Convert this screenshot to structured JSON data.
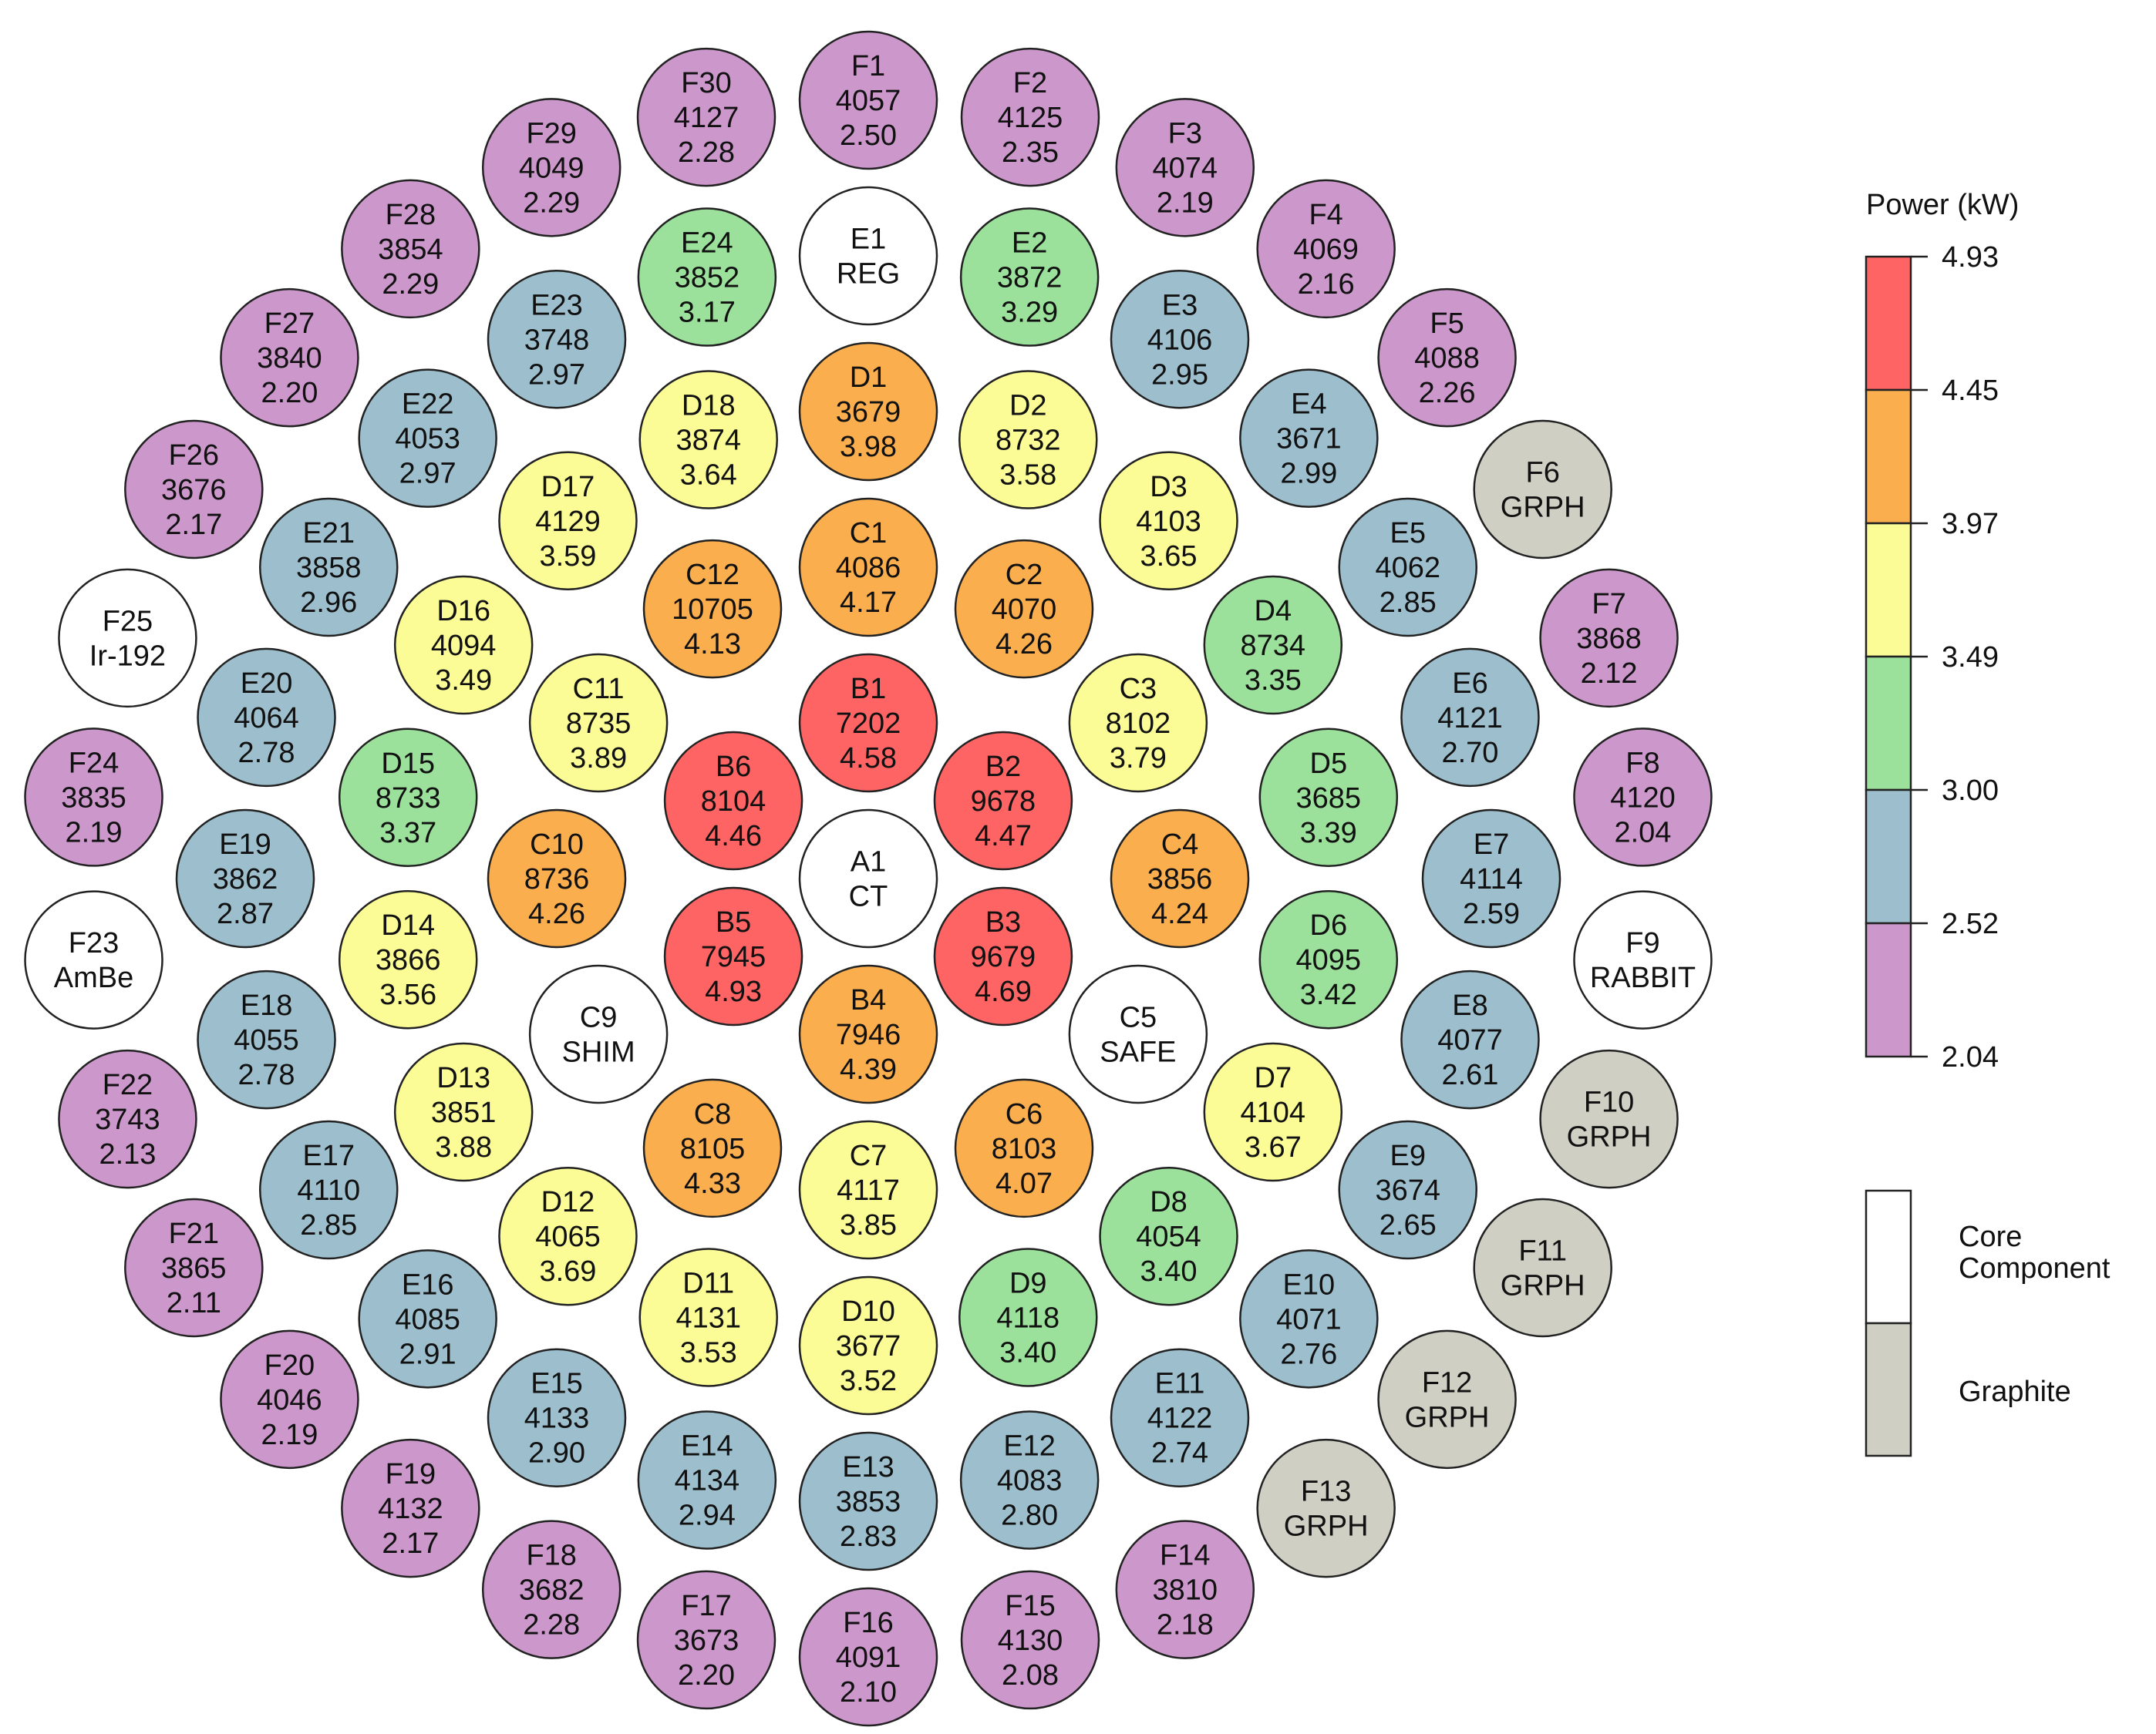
{
  "colors": {
    "red": "#ff6464",
    "orange": "#fbae4e",
    "yellow": "#fbfc96",
    "green": "#9be09b",
    "blue": "#9dbfcd",
    "purple": "#cc97cb",
    "core_component": "#ffffff",
    "graphite": "#cfcfc4",
    "stroke": "#222222"
  },
  "colorbar": {
    "title": "Power (kW)",
    "ticks": [
      "4.93",
      "4.45",
      "3.97",
      "3.49",
      "3.00",
      "2.52",
      "2.04"
    ],
    "bands": [
      "red",
      "orange",
      "yellow",
      "green",
      "blue",
      "purple"
    ]
  },
  "legend": {
    "items": [
      {
        "key": "core",
        "lines": [
          "Core",
          "Component"
        ],
        "color": "core_component"
      },
      {
        "key": "graphite",
        "lines": [
          "Graphite"
        ],
        "color": "graphite"
      }
    ]
  },
  "chart_data": {
    "type": "core map",
    "elements": [
      {
        "ring": "A",
        "pos": 1,
        "label": "A1",
        "line2": "CT",
        "line3": "",
        "kind": "core"
      },
      {
        "ring": "B",
        "pos": 1,
        "label": "B1",
        "line2": "7202",
        "line3": "4.58",
        "power": 4.58
      },
      {
        "ring": "B",
        "pos": 2,
        "label": "B2",
        "line2": "9678",
        "line3": "4.47",
        "power": 4.47
      },
      {
        "ring": "B",
        "pos": 3,
        "label": "B3",
        "line2": "9679",
        "line3": "4.69",
        "power": 4.69
      },
      {
        "ring": "B",
        "pos": 4,
        "label": "B4",
        "line2": "7946",
        "line3": "4.39",
        "power": 4.39
      },
      {
        "ring": "B",
        "pos": 5,
        "label": "B5",
        "line2": "7945",
        "line3": "4.93",
        "power": 4.93
      },
      {
        "ring": "B",
        "pos": 6,
        "label": "B6",
        "line2": "8104",
        "line3": "4.46",
        "power": 4.46
      },
      {
        "ring": "C",
        "pos": 1,
        "label": "C1",
        "line2": "4086",
        "line3": "4.17",
        "power": 4.17
      },
      {
        "ring": "C",
        "pos": 2,
        "label": "C2",
        "line2": "4070",
        "line3": "4.26",
        "power": 4.26
      },
      {
        "ring": "C",
        "pos": 3,
        "label": "C3",
        "line2": "8102",
        "line3": "3.79",
        "power": 3.79
      },
      {
        "ring": "C",
        "pos": 4,
        "label": "C4",
        "line2": "3856",
        "line3": "4.24",
        "power": 4.24
      },
      {
        "ring": "C",
        "pos": 5,
        "label": "C5",
        "line2": "SAFE",
        "line3": "",
        "kind": "core"
      },
      {
        "ring": "C",
        "pos": 6,
        "label": "C6",
        "line2": "8103",
        "line3": "4.07",
        "power": 4.07
      },
      {
        "ring": "C",
        "pos": 7,
        "label": "C7",
        "line2": "4117",
        "line3": "3.85",
        "power": 3.85
      },
      {
        "ring": "C",
        "pos": 8,
        "label": "C8",
        "line2": "8105",
        "line3": "4.33",
        "power": 4.33
      },
      {
        "ring": "C",
        "pos": 9,
        "label": "C9",
        "line2": "SHIM",
        "line3": "",
        "kind": "core"
      },
      {
        "ring": "C",
        "pos": 10,
        "label": "C10",
        "line2": "8736",
        "line3": "4.26",
        "power": 4.26
      },
      {
        "ring": "C",
        "pos": 11,
        "label": "C11",
        "line2": "8735",
        "line3": "3.89",
        "power": 3.89
      },
      {
        "ring": "C",
        "pos": 12,
        "label": "C12",
        "line2": "10705",
        "line3": "4.13",
        "power": 4.13
      },
      {
        "ring": "D",
        "pos": 1,
        "label": "D1",
        "line2": "3679",
        "line3": "3.98",
        "power": 3.98
      },
      {
        "ring": "D",
        "pos": 2,
        "label": "D2",
        "line2": "8732",
        "line3": "3.58",
        "power": 3.58
      },
      {
        "ring": "D",
        "pos": 3,
        "label": "D3",
        "line2": "4103",
        "line3": "3.65",
        "power": 3.65
      },
      {
        "ring": "D",
        "pos": 4,
        "label": "D4",
        "line2": "8734",
        "line3": "3.35",
        "power": 3.35
      },
      {
        "ring": "D",
        "pos": 5,
        "label": "D5",
        "line2": "3685",
        "line3": "3.39",
        "power": 3.39
      },
      {
        "ring": "D",
        "pos": 6,
        "label": "D6",
        "line2": "4095",
        "line3": "3.42",
        "power": 3.42
      },
      {
        "ring": "D",
        "pos": 7,
        "label": "D7",
        "line2": "4104",
        "line3": "3.67",
        "power": 3.67
      },
      {
        "ring": "D",
        "pos": 8,
        "label": "D8",
        "line2": "4054",
        "line3": "3.40",
        "power": 3.4
      },
      {
        "ring": "D",
        "pos": 9,
        "label": "D9",
        "line2": "4118",
        "line3": "3.40",
        "power": 3.4
      },
      {
        "ring": "D",
        "pos": 10,
        "label": "D10",
        "line2": "3677",
        "line3": "3.52",
        "power": 3.52
      },
      {
        "ring": "D",
        "pos": 11,
        "label": "D11",
        "line2": "4131",
        "line3": "3.53",
        "power": 3.53
      },
      {
        "ring": "D",
        "pos": 12,
        "label": "D12",
        "line2": "4065",
        "line3": "3.69",
        "power": 3.69
      },
      {
        "ring": "D",
        "pos": 13,
        "label": "D13",
        "line2": "3851",
        "line3": "3.88",
        "power": 3.88
      },
      {
        "ring": "D",
        "pos": 14,
        "label": "D14",
        "line2": "3866",
        "line3": "3.56",
        "power": 3.56
      },
      {
        "ring": "D",
        "pos": 15,
        "label": "D15",
        "line2": "8733",
        "line3": "3.37",
        "power": 3.37
      },
      {
        "ring": "D",
        "pos": 16,
        "label": "D16",
        "line2": "4094",
        "line3": "3.49",
        "power": 3.49
      },
      {
        "ring": "D",
        "pos": 17,
        "label": "D17",
        "line2": "4129",
        "line3": "3.59",
        "power": 3.59
      },
      {
        "ring": "D",
        "pos": 18,
        "label": "D18",
        "line2": "3874",
        "line3": "3.64",
        "power": 3.64
      },
      {
        "ring": "E",
        "pos": 1,
        "label": "E1",
        "line2": "REG",
        "line3": "",
        "kind": "core"
      },
      {
        "ring": "E",
        "pos": 2,
        "label": "E2",
        "line2": "3872",
        "line3": "3.29",
        "power": 3.29
      },
      {
        "ring": "E",
        "pos": 3,
        "label": "E3",
        "line2": "4106",
        "line3": "2.95",
        "power": 2.95
      },
      {
        "ring": "E",
        "pos": 4,
        "label": "E4",
        "line2": "3671",
        "line3": "2.99",
        "power": 2.99
      },
      {
        "ring": "E",
        "pos": 5,
        "label": "E5",
        "line2": "4062",
        "line3": "2.85",
        "power": 2.85
      },
      {
        "ring": "E",
        "pos": 6,
        "label": "E6",
        "line2": "4121",
        "line3": "2.70",
        "power": 2.7
      },
      {
        "ring": "E",
        "pos": 7,
        "label": "E7",
        "line2": "4114",
        "line3": "2.59",
        "power": 2.59
      },
      {
        "ring": "E",
        "pos": 8,
        "label": "E8",
        "line2": "4077",
        "line3": "2.61",
        "power": 2.61
      },
      {
        "ring": "E",
        "pos": 9,
        "label": "E9",
        "line2": "3674",
        "line3": "2.65",
        "power": 2.65
      },
      {
        "ring": "E",
        "pos": 10,
        "label": "E10",
        "line2": "4071",
        "line3": "2.76",
        "power": 2.76
      },
      {
        "ring": "E",
        "pos": 11,
        "label": "E11",
        "line2": "4122",
        "line3": "2.74",
        "power": 2.74
      },
      {
        "ring": "E",
        "pos": 12,
        "label": "E12",
        "line2": "4083",
        "line3": "2.80",
        "power": 2.8
      },
      {
        "ring": "E",
        "pos": 13,
        "label": "E13",
        "line2": "3853",
        "line3": "2.83",
        "power": 2.83
      },
      {
        "ring": "E",
        "pos": 14,
        "label": "E14",
        "line2": "4134",
        "line3": "2.94",
        "power": 2.94
      },
      {
        "ring": "E",
        "pos": 15,
        "label": "E15",
        "line2": "4133",
        "line3": "2.90",
        "power": 2.9
      },
      {
        "ring": "E",
        "pos": 16,
        "label": "E16",
        "line2": "4085",
        "line3": "2.91",
        "power": 2.91
      },
      {
        "ring": "E",
        "pos": 17,
        "label": "E17",
        "line2": "4110",
        "line3": "2.85",
        "power": 2.85
      },
      {
        "ring": "E",
        "pos": 18,
        "label": "E18",
        "line2": "4055",
        "line3": "2.78",
        "power": 2.78
      },
      {
        "ring": "E",
        "pos": 19,
        "label": "E19",
        "line2": "3862",
        "line3": "2.87",
        "power": 2.87
      },
      {
        "ring": "E",
        "pos": 20,
        "label": "E20",
        "line2": "4064",
        "line3": "2.78",
        "power": 2.78
      },
      {
        "ring": "E",
        "pos": 21,
        "label": "E21",
        "line2": "3858",
        "line3": "2.96",
        "power": 2.96
      },
      {
        "ring": "E",
        "pos": 22,
        "label": "E22",
        "line2": "4053",
        "line3": "2.97",
        "power": 2.97
      },
      {
        "ring": "E",
        "pos": 23,
        "label": "E23",
        "line2": "3748",
        "line3": "2.97",
        "power": 2.97
      },
      {
        "ring": "E",
        "pos": 24,
        "label": "E24",
        "line2": "3852",
        "line3": "3.17",
        "power": 3.17
      },
      {
        "ring": "F",
        "pos": 1,
        "label": "F1",
        "line2": "4057",
        "line3": "2.50",
        "power": 2.5
      },
      {
        "ring": "F",
        "pos": 2,
        "label": "F2",
        "line2": "4125",
        "line3": "2.35",
        "power": 2.35
      },
      {
        "ring": "F",
        "pos": 3,
        "label": "F3",
        "line2": "4074",
        "line3": "2.19",
        "power": 2.19
      },
      {
        "ring": "F",
        "pos": 4,
        "label": "F4",
        "line2": "4069",
        "line3": "2.16",
        "power": 2.16
      },
      {
        "ring": "F",
        "pos": 5,
        "label": "F5",
        "line2": "4088",
        "line3": "2.26",
        "power": 2.26
      },
      {
        "ring": "F",
        "pos": 6,
        "label": "F6",
        "line2": "GRPH",
        "line3": "",
        "kind": "graphite"
      },
      {
        "ring": "F",
        "pos": 7,
        "label": "F7",
        "line2": "3868",
        "line3": "2.12",
        "power": 2.12
      },
      {
        "ring": "F",
        "pos": 8,
        "label": "F8",
        "line2": "4120",
        "line3": "2.04",
        "power": 2.04
      },
      {
        "ring": "F",
        "pos": 9,
        "label": "F9",
        "line2": "RABBIT",
        "line3": "",
        "kind": "core"
      },
      {
        "ring": "F",
        "pos": 10,
        "label": "F10",
        "line2": "GRPH",
        "line3": "",
        "kind": "graphite"
      },
      {
        "ring": "F",
        "pos": 11,
        "label": "F11",
        "line2": "GRPH",
        "line3": "",
        "kind": "graphite"
      },
      {
        "ring": "F",
        "pos": 12,
        "label": "F12",
        "line2": "GRPH",
        "line3": "",
        "kind": "graphite"
      },
      {
        "ring": "F",
        "pos": 13,
        "label": "F13",
        "line2": "GRPH",
        "line3": "",
        "kind": "graphite"
      },
      {
        "ring": "F",
        "pos": 14,
        "label": "F14",
        "line2": "3810",
        "line3": "2.18",
        "power": 2.18
      },
      {
        "ring": "F",
        "pos": 15,
        "label": "F15",
        "line2": "4130",
        "line3": "2.08",
        "power": 2.08
      },
      {
        "ring": "F",
        "pos": 16,
        "label": "F16",
        "line2": "4091",
        "line3": "2.10",
        "power": 2.1
      },
      {
        "ring": "F",
        "pos": 17,
        "label": "F17",
        "line2": "3673",
        "line3": "2.20",
        "power": 2.2
      },
      {
        "ring": "F",
        "pos": 18,
        "label": "F18",
        "line2": "3682",
        "line3": "2.28",
        "power": 2.28
      },
      {
        "ring": "F",
        "pos": 19,
        "label": "F19",
        "line2": "4132",
        "line3": "2.17",
        "power": 2.17
      },
      {
        "ring": "F",
        "pos": 20,
        "label": "F20",
        "line2": "4046",
        "line3": "2.19",
        "power": 2.19
      },
      {
        "ring": "F",
        "pos": 21,
        "label": "F21",
        "line2": "3865",
        "line3": "2.11",
        "power": 2.11
      },
      {
        "ring": "F",
        "pos": 22,
        "label": "F22",
        "line2": "3743",
        "line3": "2.13",
        "power": 2.13
      },
      {
        "ring": "F",
        "pos": 23,
        "label": "F23",
        "line2": "AmBe",
        "line3": "",
        "kind": "core"
      },
      {
        "ring": "F",
        "pos": 24,
        "label": "F24",
        "line2": "3835",
        "line3": "2.19",
        "power": 2.19
      },
      {
        "ring": "F",
        "pos": 25,
        "label": "F25",
        "line2": "Ir-192",
        "line3": "",
        "kind": "core"
      },
      {
        "ring": "F",
        "pos": 26,
        "label": "F26",
        "line2": "3676",
        "line3": "2.17",
        "power": 2.17
      },
      {
        "ring": "F",
        "pos": 27,
        "label": "F27",
        "line2": "3840",
        "line3": "2.20",
        "power": 2.2
      },
      {
        "ring": "F",
        "pos": 28,
        "label": "F28",
        "line2": "3854",
        "line3": "2.29",
        "power": 2.29
      },
      {
        "ring": "F",
        "pos": 29,
        "label": "F29",
        "line2": "4049",
        "line3": "2.29",
        "power": 2.29
      },
      {
        "ring": "F",
        "pos": 30,
        "label": "F30",
        "line2": "4127",
        "line3": "2.28",
        "power": 2.28
      }
    ]
  }
}
